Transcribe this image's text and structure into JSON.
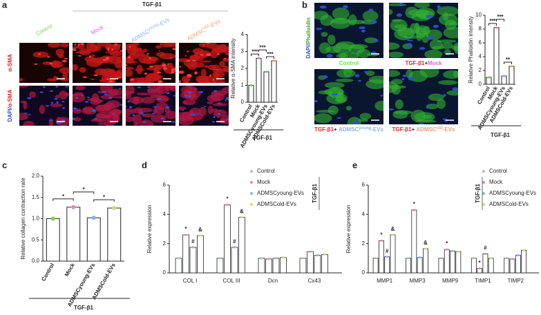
{
  "images": {
    "a": {
      "letter": "a",
      "header": "TGF-β1",
      "columns": [
        [
          {
            "text": "Control",
            "color": "#7ed24a"
          }
        ],
        [
          {
            "text": "Mock",
            "color": "#e060e0"
          }
        ],
        [
          {
            "text": "ADMSC",
            "color": "#8ab0ee"
          },
          {
            "text": "young",
            "color": "#8ab0ee",
            "sup": true
          },
          {
            "text": "-EVs",
            "color": "#8ab0ee"
          }
        ],
        [
          {
            "text": "ADMSC",
            "color": "#f0a070"
          },
          {
            "text": "old",
            "color": "#f0a070",
            "sup": true
          },
          {
            "text": "-EVs",
            "color": "#f0a070"
          }
        ]
      ],
      "rows": [
        [
          {
            "text": "α-SMA",
            "color": "#e0202a"
          }
        ],
        [
          {
            "text": "DAPI/",
            "color": "#3050d0"
          },
          {
            "text": "α-SMA",
            "color": "#e0202a"
          }
        ]
      ]
    },
    "b": {
      "letter": "b",
      "side": [
        {
          "text": "DAPI/",
          "color": "#3050d0"
        },
        {
          "text": "Phalloidin",
          "color": "#30b030"
        }
      ],
      "captions": [
        [
          {
            "text": "Control",
            "color": "#7ed24a"
          }
        ],
        [
          {
            "text": "TGF-β1",
            "color": "#e0202a"
          },
          {
            "text": "+",
            "color": "#222"
          },
          {
            "text": "Mock",
            "color": "#e060e0"
          }
        ],
        [
          {
            "text": "TGF-β1",
            "color": "#e0202a"
          },
          {
            "text": "+ ",
            "color": "#222"
          },
          {
            "text": "ADMSC",
            "color": "#8ab0ee"
          },
          {
            "text": "young",
            "color": "#8ab0ee",
            "sup": true
          },
          {
            "text": "-EVs",
            "color": "#8ab0ee"
          }
        ],
        [
          {
            "text": "TGF-β1",
            "color": "#e0202a"
          },
          {
            "text": "+ ",
            "color": "#222"
          },
          {
            "text": "ADMSC",
            "color": "#f0a070"
          },
          {
            "text": "old",
            "color": "#f0a070",
            "sup": true
          },
          {
            "text": "-EVs",
            "color": "#f0a070"
          }
        ]
      ]
    },
    "c": {
      "letter": "c"
    },
    "d": {
      "letter": "d"
    },
    "e": {
      "letter": "e"
    }
  },
  "chart_data": [
    {
      "type": "bar",
      "y_label": "Relative α-SMA intensity",
      "categories": [
        "Control",
        "Mock",
        "ADMSCyoung-EVs",
        "ADMSCold-EVs"
      ],
      "values": [
        1.0,
        2.6,
        1.8,
        2.45
      ],
      "colors": [
        "#7ed24a",
        "#e888b8",
        "#8ab0ee",
        "#f0b070"
      ],
      "ylim": [
        0,
        4
      ],
      "yticks": [
        0,
        1,
        2,
        3,
        4
      ],
      "annotations": [
        "***",
        "***",
        "***"
      ],
      "group_label": "TGF-β1"
    },
    {
      "type": "bar",
      "y_label": "Relative Phalloidin intensity",
      "categories": [
        "Control",
        "Mock",
        "ADMSCyoung-EVs",
        "ADMSCold-EVs"
      ],
      "values": [
        1.0,
        8.2,
        1.2,
        2.6
      ],
      "colors": [
        "#7ed24a",
        "#e888b8",
        "#8ab0ee",
        "#f0b070"
      ],
      "ylim": [
        0,
        10
      ],
      "yticks": [
        0,
        2,
        4,
        6,
        8,
        10
      ],
      "annotations": [
        "***",
        "***",
        "**"
      ],
      "group_label": "TGF-β1"
    },
    {
      "type": "bar",
      "y_label": "Relative collagen contraction rate",
      "categories": [
        "Control",
        "Mock",
        "ADMSCyoung-EVs",
        "ADMSCold-EVs"
      ],
      "values": [
        1.0,
        1.27,
        1.02,
        1.25
      ],
      "colors": [
        "#7ed24a",
        "#e888b8",
        "#8ab0ee",
        "#c8e070"
      ],
      "ylim": [
        0,
        2
      ],
      "yticks": [
        {
          "value": 0,
          "label": "0.0"
        },
        {
          "value": 0.5,
          "label": "0.5"
        },
        {
          "value": 1,
          "label": "1.0"
        },
        {
          "value": 1.5,
          "label": "1.5"
        },
        {
          "value": 2,
          "label": "2.0"
        }
      ],
      "annotations": [
        "*",
        "*",
        "*"
      ],
      "group_label": "TGF-β1"
    },
    {
      "type": "grouped_bar",
      "y_label": "Relative expression",
      "categories": [
        "COL I",
        "COL III",
        "Dcn",
        "Cx43"
      ],
      "ylim": [
        0,
        6
      ],
      "yticks": [
        0,
        2,
        4,
        6
      ],
      "legend_title": "TGF-β1",
      "series": [
        {
          "name": "Control",
          "color": "#a8c8a8",
          "values": [
            1.0,
            1.0,
            1.0,
            1.0
          ],
          "annotations": [
            null,
            null,
            null,
            null
          ]
        },
        {
          "name": "Mock",
          "color": "#e888b8",
          "values": [
            2.6,
            4.65,
            0.95,
            1.45
          ],
          "annotations": [
            "*",
            "*",
            null,
            null
          ]
        },
        {
          "name": "ADMSCyoung-EVs",
          "color": "#8ab0ee",
          "values": [
            1.75,
            1.75,
            1.0,
            1.2
          ],
          "annotations": [
            "#",
            "#",
            null,
            null
          ]
        },
        {
          "name": "ADMSCold-EVs",
          "color": "#c8e070",
          "values": [
            2.55,
            3.8,
            1.05,
            1.25
          ],
          "annotations": [
            "&",
            "&",
            null,
            null
          ]
        }
      ]
    },
    {
      "type": "grouped_bar",
      "y_label": "Relative expression",
      "categories": [
        "MMP1",
        "MMP3",
        "MMP9",
        "TIMP1",
        "TIMP2"
      ],
      "ylim": [
        0,
        6
      ],
      "yticks": [
        0,
        2,
        4,
        6
      ],
      "legend_title": "TGF-β1",
      "series": [
        {
          "name": "Control",
          "color": "#a8c8a8",
          "values": [
            1.0,
            1.0,
            1.0,
            1.0,
            1.0
          ],
          "annotations": [
            null,
            null,
            null,
            null,
            null
          ]
        },
        {
          "name": "Mock",
          "color": "#e888b8",
          "values": [
            2.2,
            4.3,
            1.6,
            0.3,
            0.95
          ],
          "annotations": [
            "*",
            "*",
            "*",
            "*",
            null
          ]
        },
        {
          "name": "ADMSCyoung-EVs",
          "color": "#8ab0ee",
          "values": [
            1.1,
            1.05,
            1.5,
            1.3,
            1.2
          ],
          "annotations": [
            "#",
            null,
            null,
            "#",
            null
          ]
        },
        {
          "name": "ADMSCold-EVs",
          "color": "#c8e070",
          "values": [
            2.6,
            1.65,
            1.45,
            1.0,
            1.55
          ],
          "annotations": [
            "&",
            "&",
            null,
            null,
            null
          ]
        }
      ]
    }
  ]
}
